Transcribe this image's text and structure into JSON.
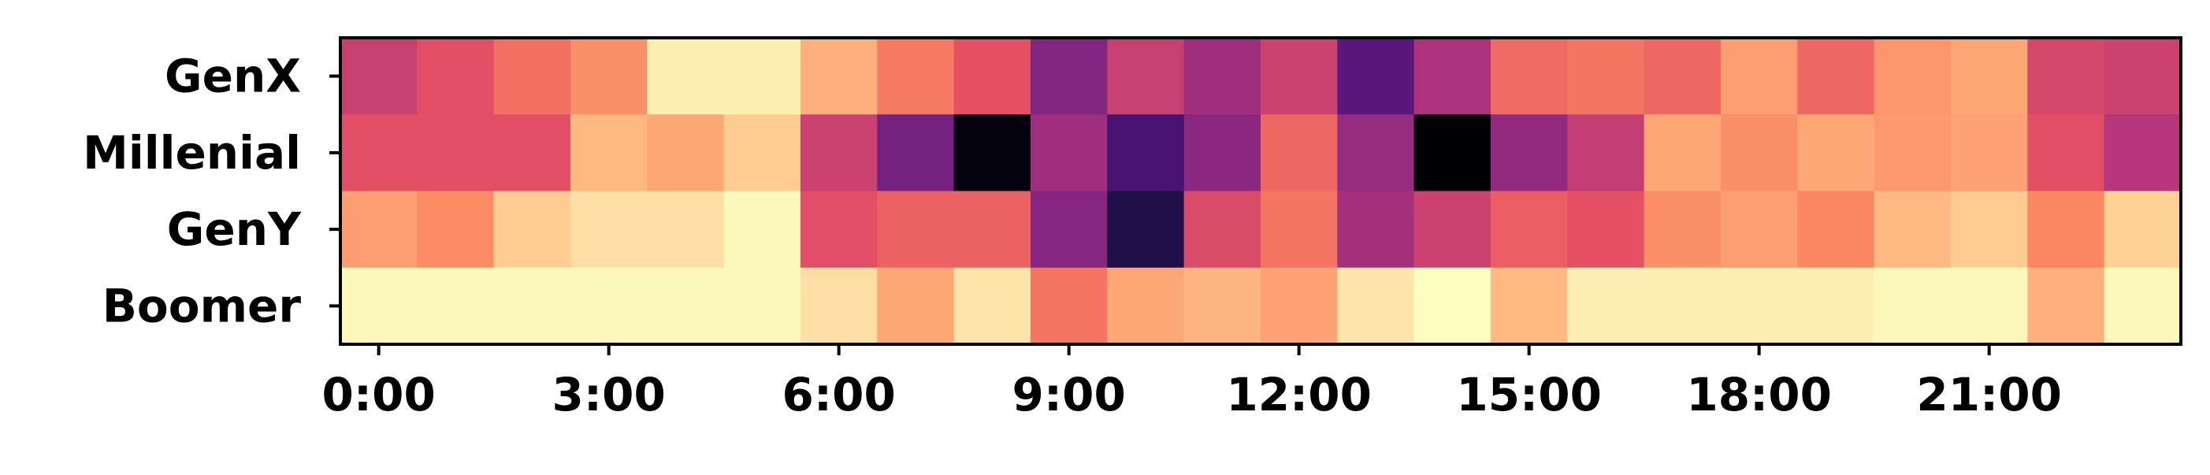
{
  "chart_data": {
    "type": "heatmap",
    "colormap": "magma",
    "title": "",
    "xlabel": "",
    "ylabel": "",
    "rows": [
      "GenX",
      "Millenial",
      "GenY",
      "Boomer"
    ],
    "columns": [
      "0:00",
      "1:00",
      "2:00",
      "3:00",
      "4:00",
      "5:00",
      "6:00",
      "7:00",
      "8:00",
      "9:00",
      "10:00",
      "11:00",
      "12:00",
      "13:00",
      "14:00",
      "15:00",
      "16:00",
      "17:00",
      "18:00",
      "19:00",
      "20:00",
      "21:00",
      "22:00",
      "23:00"
    ],
    "x_tick_labels": [
      "0:00",
      "3:00",
      "6:00",
      "9:00",
      "12:00",
      "15:00",
      "18:00",
      "21:00"
    ],
    "x_tick_hours": [
      0,
      3,
      6,
      9,
      12,
      15,
      18,
      21
    ],
    "value_scale": "normalized intensity 0 (dark) to 1 (light)",
    "values": [
      [
        0.55,
        0.62,
        0.7,
        0.77,
        0.97,
        0.97,
        0.84,
        0.72,
        0.63,
        0.38,
        0.55,
        0.45,
        0.56,
        0.28,
        0.48,
        0.69,
        0.71,
        0.68,
        0.8,
        0.68,
        0.78,
        0.82,
        0.59,
        0.56
      ],
      [
        0.62,
        0.62,
        0.62,
        0.86,
        0.82,
        0.9,
        0.56,
        0.35,
        0.02,
        0.45,
        0.23,
        0.4,
        0.68,
        0.43,
        0.0,
        0.42,
        0.54,
        0.82,
        0.77,
        0.82,
        0.79,
        0.81,
        0.62,
        0.5
      ],
      [
        0.8,
        0.76,
        0.9,
        0.94,
        0.94,
        0.99,
        0.62,
        0.67,
        0.67,
        0.39,
        0.14,
        0.6,
        0.71,
        0.46,
        0.56,
        0.66,
        0.63,
        0.77,
        0.8,
        0.75,
        0.86,
        0.9,
        0.75,
        0.91
      ],
      [
        0.99,
        0.99,
        0.99,
        0.99,
        0.99,
        0.99,
        0.94,
        0.82,
        0.95,
        0.71,
        0.82,
        0.85,
        0.81,
        0.95,
        1.0,
        0.86,
        0.97,
        0.97,
        0.97,
        0.97,
        0.99,
        0.99,
        0.84,
        0.99
      ]
    ]
  }
}
